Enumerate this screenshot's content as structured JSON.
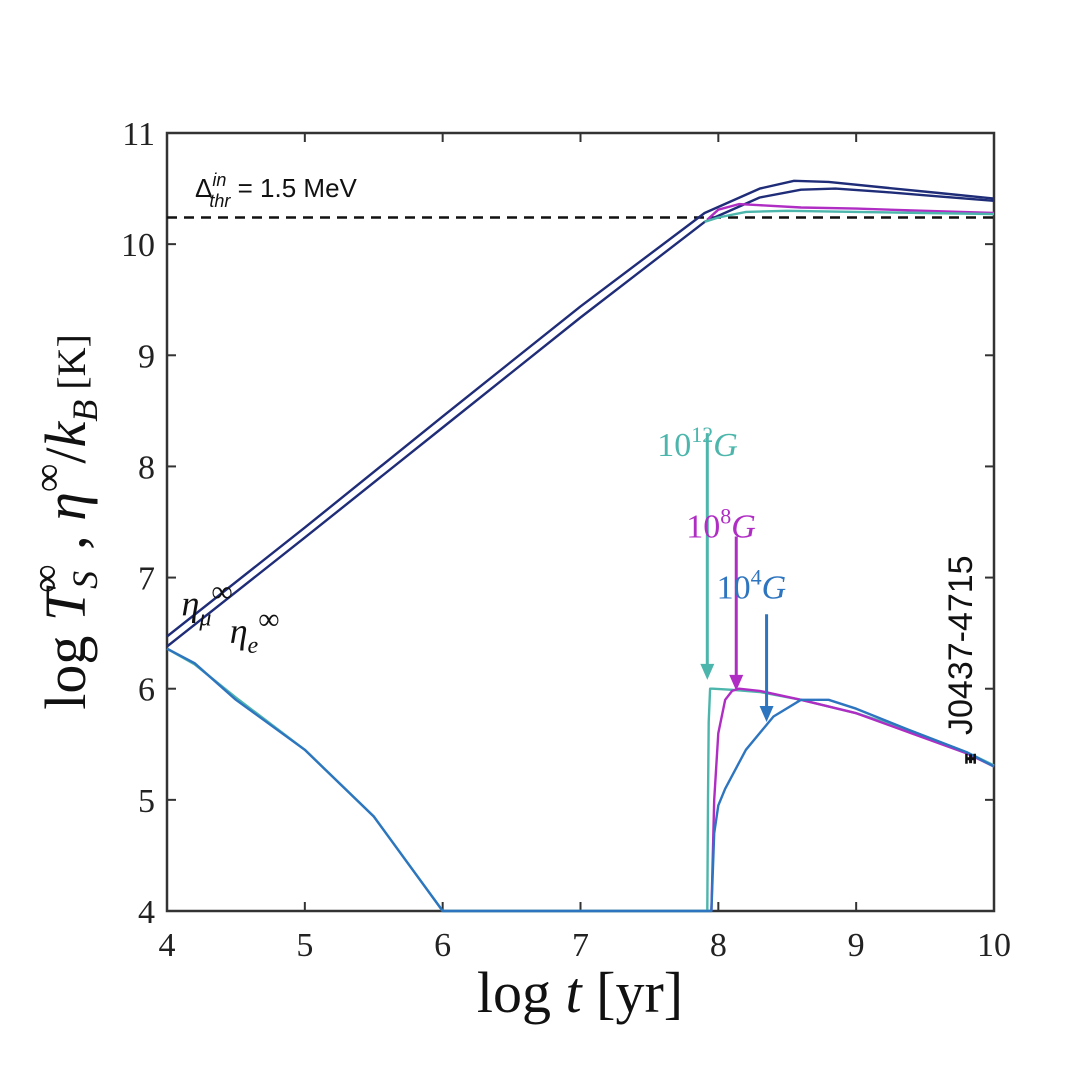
{
  "chart_data": {
    "type": "line",
    "xlabel": {
      "prefix": "log ",
      "var": "t",
      "unit": " [yr]"
    },
    "ylabel": {
      "prefix": "log ",
      "var1": "T",
      "sub1": "S",
      "sup1": "∞",
      "sep": " , ",
      "var2": "η",
      "sup2": "∞",
      "slash": "/",
      "var3": "k",
      "sub3": "B",
      "unit": " [K]"
    },
    "xlim": [
      4,
      10
    ],
    "ylim": [
      4,
      11
    ],
    "xticks": [
      "4",
      "5",
      "6",
      "7",
      "8",
      "9",
      "10"
    ],
    "yticks": [
      "4",
      "5",
      "6",
      "7",
      "8",
      "9",
      "10",
      "11"
    ],
    "grid": false,
    "threshold": {
      "y": 10.24,
      "label_delta": "Δ",
      "label_sup": "in",
      "label_sub": "thr",
      "label_value": " = 1.5 MeV"
    },
    "chem_labels": [
      {
        "var": "η",
        "sub": "μ",
        "sup": "∞",
        "x": 4.25,
        "y": 6.75
      },
      {
        "var": "η",
        "sub": "e",
        "sup": "∞",
        "x": 4.6,
        "y": 6.5
      }
    ],
    "field_labels": [
      {
        "base": "10",
        "exp": "12",
        "unit": "G",
        "color": "#4DB6AC",
        "x": 7.92,
        "y": 8.2,
        "arrow_from": 8.3,
        "arrow_to": 6.08
      },
      {
        "base": "10",
        "exp": "8",
        "unit": "G",
        "color": "#B02DC4",
        "x": 8.13,
        "y": 7.47,
        "arrow_from": 7.37,
        "arrow_to": 5.98
      },
      {
        "base": "10",
        "exp": "4",
        "unit": "G",
        "color": "#2E75C0",
        "x": 8.35,
        "y": 6.92,
        "arrow_from": 6.67,
        "arrow_to": 5.7
      }
    ],
    "observation": {
      "name": "J0437-4715",
      "x": 9.83,
      "x_err": [
        9.8,
        9.86
      ],
      "y": 5.37,
      "y_err": [
        5.33,
        5.41
      ]
    },
    "series": [
      {
        "role": "eta_mu",
        "color": "#1F2C78",
        "x": [
          4,
          5,
          6,
          7,
          7.9,
          8.3,
          8.55,
          8.8,
          9.2,
          9.6,
          10
        ],
        "y": [
          6.47,
          7.45,
          8.45,
          9.44,
          10.28,
          10.5,
          10.57,
          10.56,
          10.51,
          10.46,
          10.41
        ]
      },
      {
        "role": "eta_e",
        "color": "#1F2C78",
        "x": [
          4,
          5,
          6,
          7,
          7.9,
          8.3,
          8.6,
          8.85,
          9.2,
          9.6,
          10
        ],
        "y": [
          6.38,
          7.36,
          8.35,
          9.34,
          10.2,
          10.42,
          10.49,
          10.5,
          10.47,
          10.43,
          10.39
        ]
      },
      {
        "role": "eta_1e8",
        "color": "#B02DC4",
        "x": [
          7.92,
          8.0,
          8.15,
          8.3,
          8.6,
          9.0,
          9.5,
          10
        ],
        "y": [
          10.22,
          10.31,
          10.36,
          10.35,
          10.33,
          10.32,
          10.3,
          10.28
        ]
      },
      {
        "role": "eta_1e12",
        "color": "#4DB6AC",
        "x": [
          7.9,
          8.0,
          8.2,
          8.5,
          9.0,
          9.5,
          10
        ],
        "y": [
          10.2,
          10.24,
          10.29,
          10.3,
          10.29,
          10.28,
          10.27
        ]
      },
      {
        "role": "T_1e12",
        "color": "#4DB6AC",
        "x": [
          4,
          4.2,
          4.5,
          5,
          5.5,
          6,
          7.92,
          7.925,
          7.93,
          7.94,
          7.96,
          8.1,
          8.3,
          8.6,
          9.0,
          9.4,
          9.8,
          10
        ],
        "y": [
          6.36,
          6.22,
          5.92,
          5.45,
          4.85,
          4.0,
          4.0,
          5.0,
          5.7,
          6.0,
          6.0,
          5.99,
          5.97,
          5.9,
          5.78,
          5.62,
          5.43,
          5.31
        ]
      },
      {
        "role": "T_1e8",
        "color": "#B02DC4",
        "x": [
          7.95,
          7.97,
          8.0,
          8.05,
          8.1,
          8.15,
          8.3,
          8.6,
          9.0,
          9.4,
          9.8,
          10
        ],
        "y": [
          4.0,
          5.0,
          5.6,
          5.9,
          5.98,
          6.0,
          5.98,
          5.9,
          5.78,
          5.6,
          5.42,
          5.3
        ]
      },
      {
        "role": "T_1e4",
        "color": "#2E75C0",
        "x": [
          4,
          4.2,
          4.5,
          5,
          5.5,
          6,
          7.95,
          7.97,
          8.0,
          8.05,
          8.2,
          8.4,
          8.6,
          8.8,
          9.0,
          9.4,
          9.8,
          10
        ],
        "y": [
          6.36,
          6.23,
          5.9,
          5.45,
          4.85,
          4.0,
          4.0,
          4.7,
          4.95,
          5.1,
          5.45,
          5.75,
          5.9,
          5.9,
          5.82,
          5.62,
          5.43,
          5.3
        ]
      }
    ]
  }
}
